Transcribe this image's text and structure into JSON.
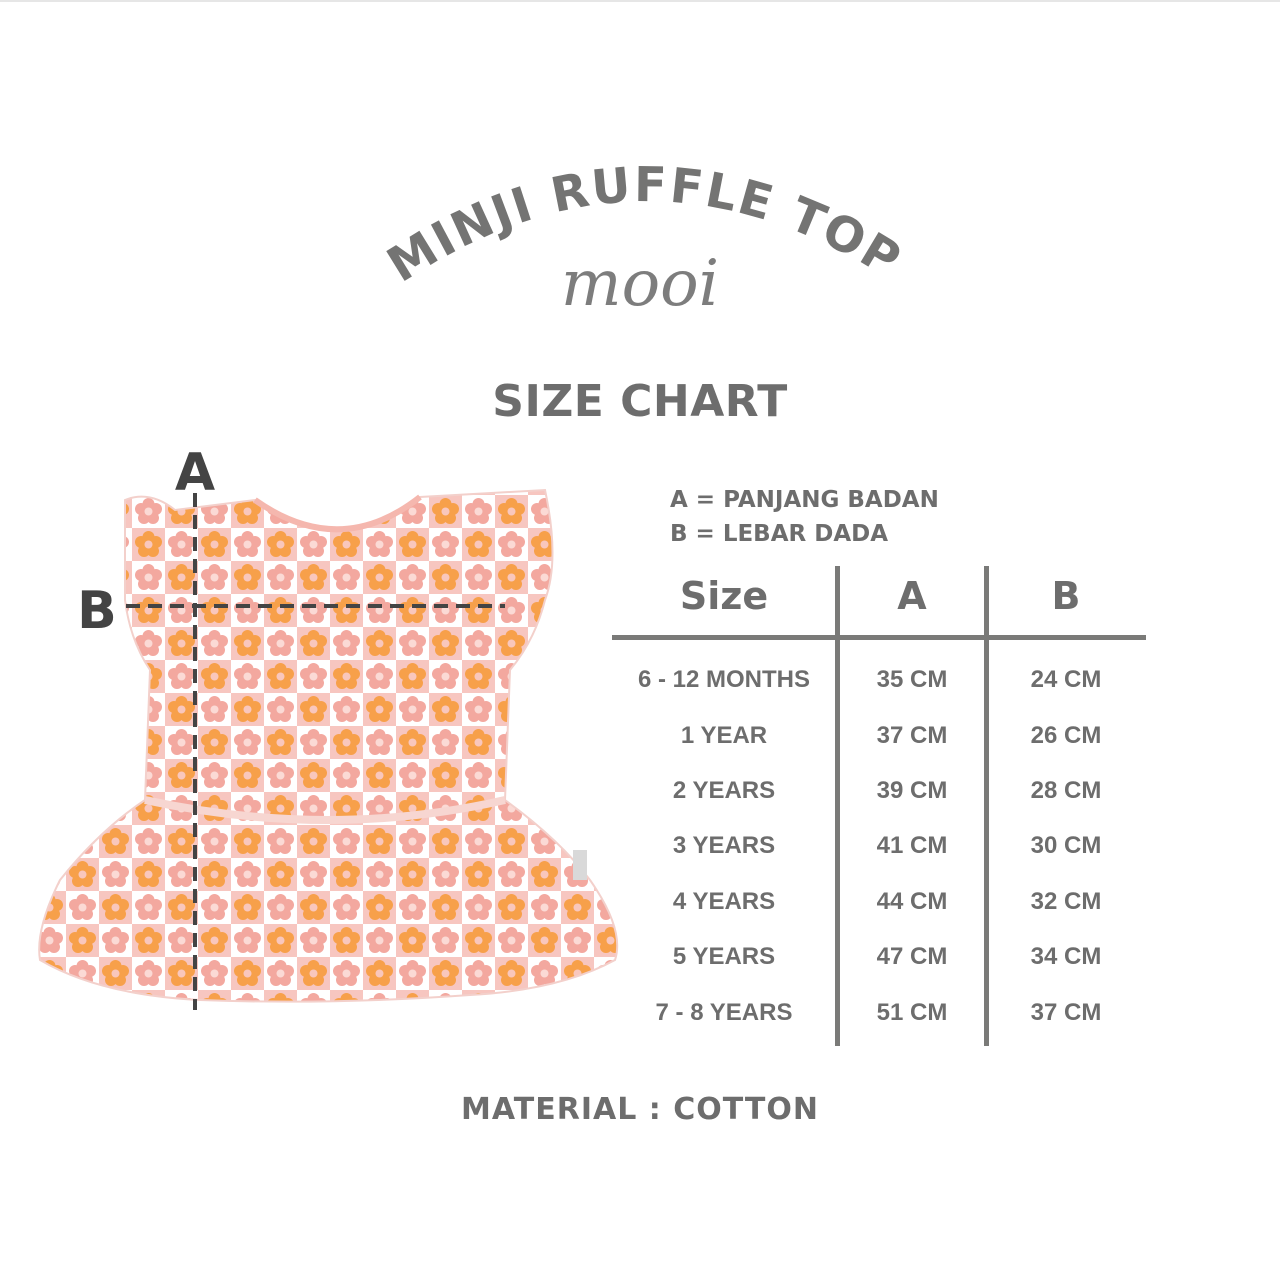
{
  "product_title": "MINJI RUFFLE TOP",
  "brand": "mooi",
  "section_title": "SIZE CHART",
  "legend": [
    "A = PANJANG BADAN",
    "B = LEBAR DADA"
  ],
  "diagram_labels": {
    "a": "A",
    "b": "B"
  },
  "table": {
    "headers": [
      "Size",
      "A",
      "B"
    ],
    "rows": [
      [
        "6 - 12 MONTHS",
        "35 CM",
        "24 CM"
      ],
      [
        "1 YEAR",
        "37 CM",
        "26 CM"
      ],
      [
        "2 YEARS",
        "39 CM",
        "28 CM"
      ],
      [
        "3 YEARS",
        "41 CM",
        "30 CM"
      ],
      [
        "4 YEARS",
        "44 CM",
        "32 CM"
      ],
      [
        "5 YEARS",
        "47 CM",
        "34 CM"
      ],
      [
        "7 - 8 YEARS",
        "51 CM",
        "37 CM"
      ]
    ]
  },
  "material": "MATERIAL : COTTON",
  "colors": {
    "text": "#6d6d6d",
    "lines": "#7a7a78",
    "fabric_pink": "#f7c6c0",
    "flower_orange": "#f7a04a",
    "dash": "#444444"
  }
}
